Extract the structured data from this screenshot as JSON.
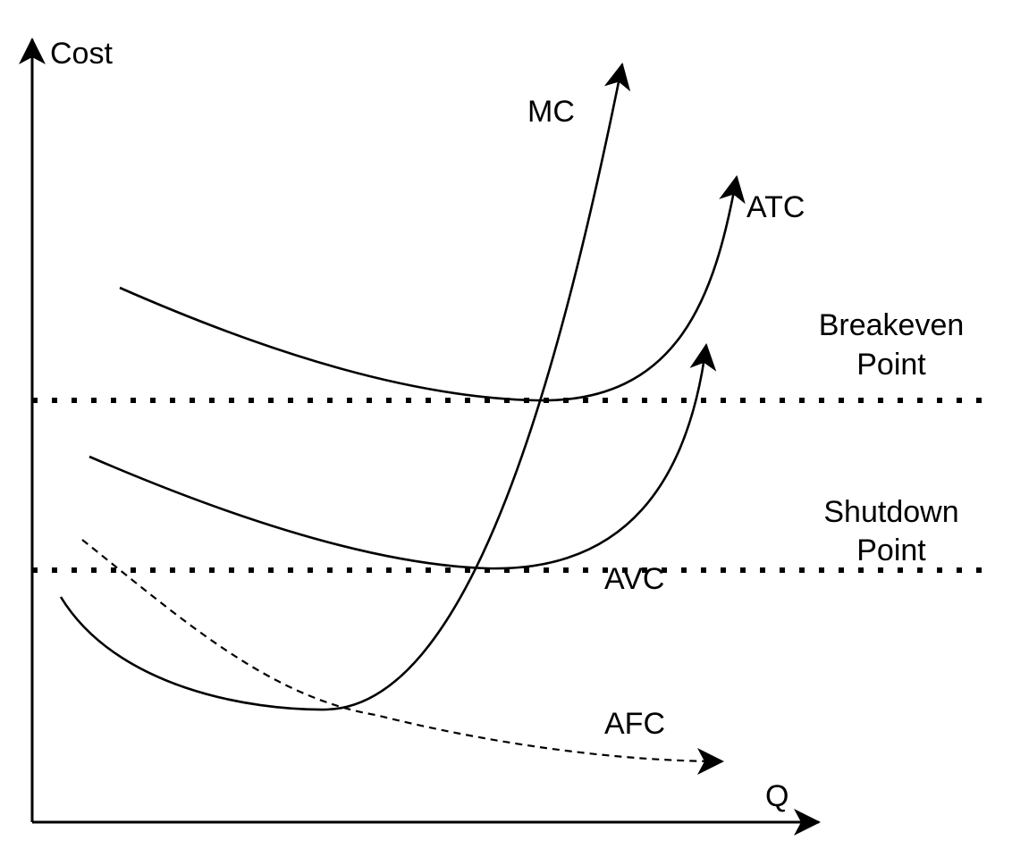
{
  "axes": {
    "y_label": "Cost",
    "x_label": "Q"
  },
  "curves": {
    "mc": "MC",
    "atc": "ATC",
    "avc": "AVC",
    "afc": "AFC"
  },
  "levels": {
    "breakeven_line1": "Breakeven",
    "breakeven_line2": "Point",
    "shutdown_line1": "Shutdown",
    "shutdown_line2": "Point"
  }
}
